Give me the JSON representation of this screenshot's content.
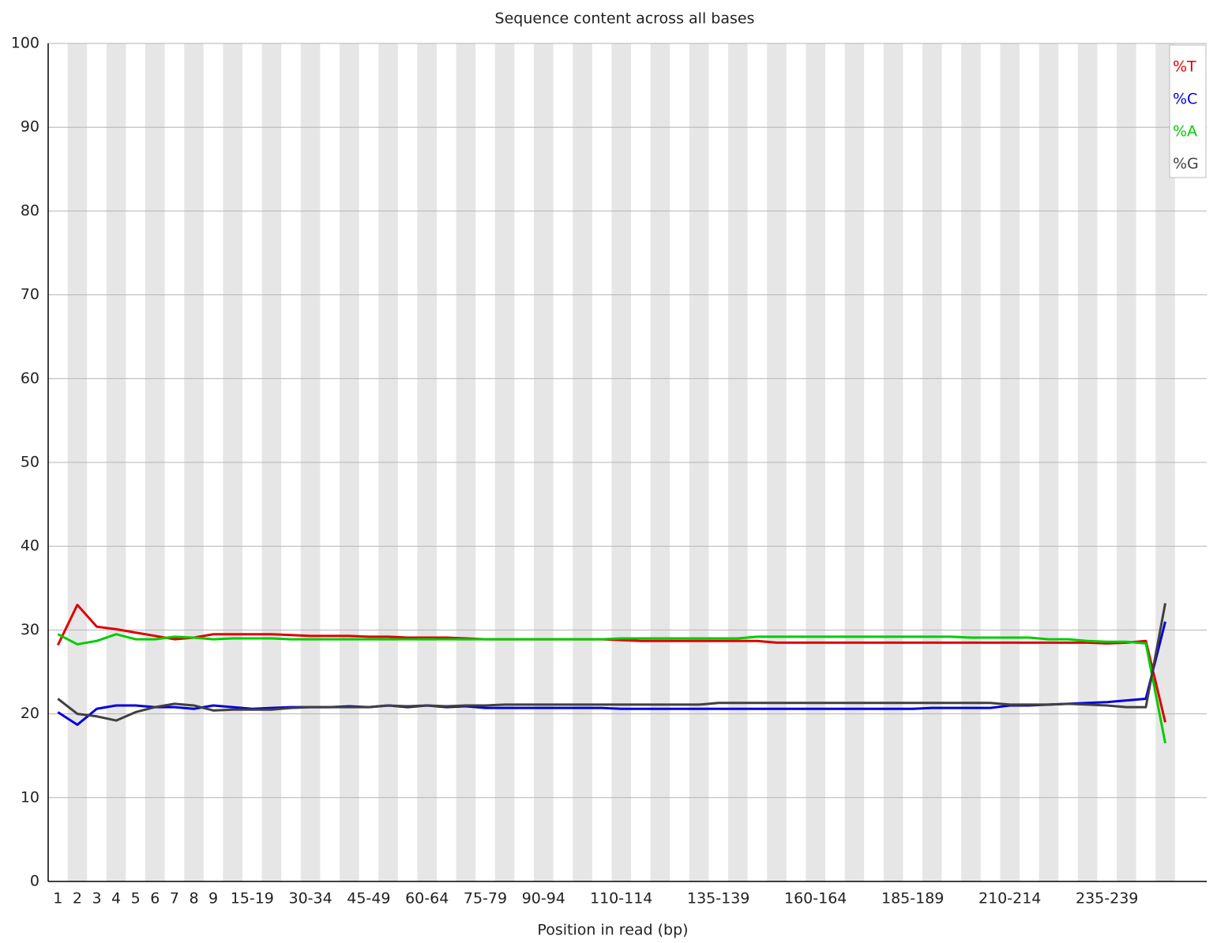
{
  "chart_data": {
    "type": "line",
    "title": "Sequence content across all bases",
    "xlabel": "Position in read (bp)",
    "categories": [
      "1",
      "2",
      "3",
      "4",
      "5",
      "6",
      "7",
      "8",
      "9",
      null,
      "15-19",
      null,
      null,
      "30-34",
      null,
      null,
      "45-49",
      null,
      null,
      "60-64",
      null,
      null,
      "75-79",
      null,
      null,
      "90-94",
      null,
      null,
      null,
      "110-114",
      null,
      null,
      null,
      null,
      "135-139",
      null,
      null,
      null,
      null,
      "160-164",
      null,
      null,
      null,
      null,
      "185-189",
      null,
      null,
      null,
      null,
      "210-214",
      null,
      null,
      null,
      null,
      "235-239",
      null,
      null,
      null
    ],
    "series": [
      {
        "name": "%T",
        "color": "#e00000",
        "values": [
          28.2,
          33.0,
          30.4,
          30.1,
          29.7,
          29.3,
          28.9,
          29.1,
          29.5,
          29.5,
          29.5,
          29.5,
          29.4,
          29.3,
          29.3,
          29.3,
          29.2,
          29.2,
          29.1,
          29.1,
          29.1,
          29.0,
          28.9,
          28.9,
          28.9,
          28.9,
          28.9,
          28.9,
          28.9,
          28.8,
          28.7,
          28.7,
          28.7,
          28.7,
          28.7,
          28.7,
          28.7,
          28.5,
          28.5,
          28.5,
          28.5,
          28.5,
          28.5,
          28.5,
          28.5,
          28.5,
          28.5,
          28.5,
          28.5,
          28.5,
          28.5,
          28.5,
          28.5,
          28.5,
          28.4,
          28.5,
          28.7,
          19.0
        ]
      },
      {
        "name": "%C",
        "color": "#0000e0",
        "values": [
          20.2,
          18.7,
          20.6,
          21.0,
          21.0,
          20.8,
          20.8,
          20.6,
          21.0,
          20.8,
          20.6,
          20.7,
          20.8,
          20.8,
          20.8,
          20.9,
          20.8,
          21.0,
          20.8,
          21.0,
          20.8,
          20.9,
          20.7,
          20.7,
          20.7,
          20.7,
          20.7,
          20.7,
          20.7,
          20.6,
          20.6,
          20.6,
          20.6,
          20.6,
          20.6,
          20.6,
          20.6,
          20.6,
          20.6,
          20.6,
          20.6,
          20.6,
          20.6,
          20.6,
          20.6,
          20.7,
          20.7,
          20.7,
          20.7,
          21.0,
          21.0,
          21.1,
          21.2,
          21.3,
          21.4,
          21.6,
          21.8,
          31.0
        ]
      },
      {
        "name": "%A",
        "color": "#00cc00",
        "values": [
          29.5,
          28.3,
          28.7,
          29.5,
          28.9,
          28.9,
          29.2,
          29.1,
          28.9,
          29.0,
          29.0,
          29.0,
          28.9,
          28.9,
          28.9,
          28.9,
          28.9,
          28.9,
          28.9,
          28.9,
          28.9,
          28.9,
          28.9,
          28.9,
          28.9,
          28.9,
          28.9,
          28.9,
          28.9,
          29.0,
          29.0,
          29.0,
          29.0,
          29.0,
          29.0,
          29.0,
          29.2,
          29.2,
          29.2,
          29.2,
          29.2,
          29.2,
          29.2,
          29.2,
          29.2,
          29.2,
          29.2,
          29.1,
          29.1,
          29.1,
          29.1,
          28.9,
          28.9,
          28.7,
          28.6,
          28.6,
          28.4,
          16.5
        ]
      },
      {
        "name": "%G",
        "color": "#404040",
        "values": [
          21.8,
          20.0,
          19.7,
          19.2,
          20.2,
          20.8,
          21.2,
          21.0,
          20.4,
          20.5,
          20.5,
          20.5,
          20.7,
          20.8,
          20.8,
          20.8,
          20.8,
          21.0,
          20.9,
          21.0,
          20.9,
          21.0,
          21.0,
          21.1,
          21.1,
          21.1,
          21.1,
          21.1,
          21.1,
          21.1,
          21.1,
          21.1,
          21.1,
          21.1,
          21.3,
          21.3,
          21.3,
          21.3,
          21.3,
          21.3,
          21.3,
          21.3,
          21.3,
          21.3,
          21.3,
          21.3,
          21.3,
          21.3,
          21.3,
          21.1,
          21.1,
          21.1,
          21.2,
          21.1,
          21.0,
          20.8,
          20.8,
          33.2
        ]
      }
    ],
    "ylim": [
      0,
      100
    ],
    "yticks": [
      0,
      10,
      20,
      30,
      40,
      50,
      60,
      70,
      80,
      90,
      100
    ],
    "grid": true,
    "legend": "top-right"
  }
}
